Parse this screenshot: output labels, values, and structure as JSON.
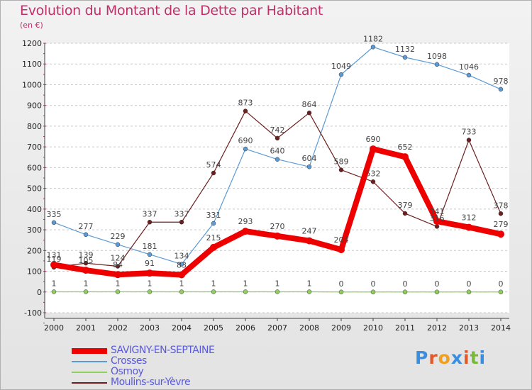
{
  "title": "Evolution du Montant de la Dette par Habitant",
  "unit": "(en €)",
  "logo": {
    "letters": [
      "P",
      "r",
      "o",
      "x",
      "i",
      "t",
      "i"
    ],
    "colors": [
      "#3a8ee0",
      "#e05a2a",
      "#f0a020",
      "#3a8ee0",
      "#e05a2a",
      "#7ab83a",
      "#3a8ee0"
    ]
  },
  "chart_data": {
    "type": "line",
    "title": "Evolution du Montant de la Dette par Habitant",
    "ylabel": "(en €)",
    "xlabel": "",
    "x": [
      2000,
      2001,
      2002,
      2003,
      2004,
      2005,
      2006,
      2007,
      2008,
      2009,
      2010,
      2011,
      2012,
      2013,
      2014
    ],
    "ylim": [
      -100,
      1200
    ],
    "yticks": [
      -100,
      0,
      100,
      200,
      300,
      400,
      500,
      600,
      700,
      800,
      900,
      1000,
      1100,
      1200
    ],
    "grid": "horizontal-dashed",
    "legend_position": "bottom-left",
    "series": [
      {
        "name": "SAVIGNY-EN-SEPTAINE",
        "color": "#ee0000",
        "values": [
          131,
          105,
          84,
          91,
          83,
          215,
          293,
          270,
          247,
          204,
          690,
          652,
          341,
          312,
          279
        ]
      },
      {
        "name": "Crosses",
        "color": "#5b9bd5",
        "values": [
          335,
          277,
          229,
          181,
          134,
          331,
          690,
          640,
          604,
          1049,
          1182,
          1132,
          1098,
          1046,
          978
        ]
      },
      {
        "name": "Osmoy",
        "color": "#8fd05a",
        "values": [
          1,
          1,
          1,
          1,
          1,
          1,
          1,
          1,
          1,
          0,
          0,
          0,
          0,
          0,
          0
        ]
      },
      {
        "name": "Moulins-sur-Yèvre",
        "color": "#6b1f1f",
        "values": [
          119,
          139,
          124,
          337,
          337,
          574,
          873,
          742,
          864,
          589,
          532,
          379,
          316,
          733,
          378
        ]
      }
    ]
  }
}
